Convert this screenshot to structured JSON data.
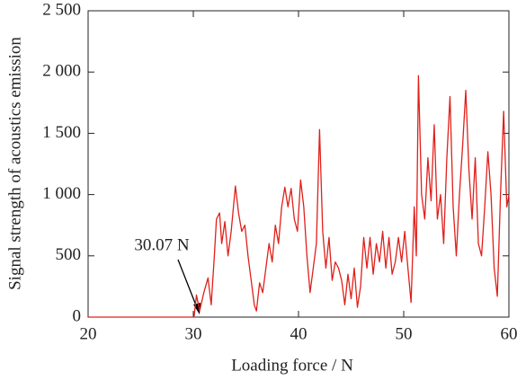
{
  "chart_data": {
    "type": "line",
    "xlabel": "Loading force / N",
    "ylabel": "Signal strength of acoustics emission",
    "annotation": "30.07 N",
    "xlim": [
      20,
      60
    ],
    "ylim": [
      0,
      2500
    ],
    "xticks": [
      20,
      30,
      40,
      50,
      60
    ],
    "yticks": [
      0,
      500,
      {
        "value": 1000,
        "label": "1 000"
      },
      {
        "value": 1500,
        "label": "1 500"
      },
      {
        "value": 2000,
        "label": "2 000"
      },
      {
        "value": 2500,
        "label": "2 500"
      }
    ],
    "x": [
      20,
      30.07,
      30.3,
      30.6,
      31,
      31.4,
      31.7,
      32,
      32.2,
      32.5,
      32.7,
      33,
      33.3,
      33.6,
      34,
      34.3,
      34.6,
      34.9,
      35.2,
      35.5,
      35.8,
      36,
      36.3,
      36.6,
      36.9,
      37.2,
      37.5,
      37.8,
      38.1,
      38.4,
      38.7,
      39,
      39.3,
      39.6,
      39.9,
      40.2,
      40.5,
      40.8,
      41.1,
      41.4,
      41.7,
      42,
      42.3,
      42.6,
      42.9,
      43.2,
      43.5,
      43.8,
      44.1,
      44.4,
      44.7,
      45,
      45.3,
      45.6,
      45.9,
      46.2,
      46.5,
      46.8,
      47.1,
      47.4,
      47.7,
      48,
      48.3,
      48.6,
      48.9,
      49.2,
      49.5,
      49.8,
      50.1,
      50.4,
      50.7,
      51,
      51.2,
      51.4,
      51.7,
      52,
      52.3,
      52.6,
      52.9,
      53.2,
      53.5,
      53.8,
      54.1,
      54.4,
      54.7,
      55,
      55.3,
      55.6,
      55.9,
      56.2,
      56.5,
      56.8,
      57.1,
      57.4,
      57.7,
      58,
      58.3,
      58.6,
      58.9,
      59.2,
      59.5,
      59.8,
      60
    ],
    "series": [
      {
        "color": "#e0201a",
        "values": [
          0,
          0,
          180,
          50,
          200,
          320,
          100,
          500,
          800,
          850,
          600,
          780,
          500,
          700,
          1070,
          850,
          700,
          750,
          500,
          300,
          100,
          50,
          280,
          200,
          400,
          600,
          450,
          750,
          600,
          900,
          1060,
          900,
          1050,
          800,
          700,
          1120,
          900,
          500,
          200,
          400,
          600,
          1530,
          700,
          400,
          650,
          300,
          450,
          400,
          300,
          100,
          350,
          150,
          400,
          80,
          250,
          650,
          400,
          650,
          350,
          600,
          450,
          700,
          400,
          650,
          350,
          450,
          650,
          450,
          700,
          400,
          120,
          900,
          500,
          1970,
          1000,
          800,
          1300,
          950,
          1570,
          800,
          1000,
          600,
          1300,
          1800,
          900,
          500,
          1000,
          1400,
          1850,
          1200,
          800,
          1300,
          600,
          500,
          900,
          1350,
          1000,
          400,
          170,
          1000,
          1680,
          900,
          1000
        ]
      }
    ]
  }
}
